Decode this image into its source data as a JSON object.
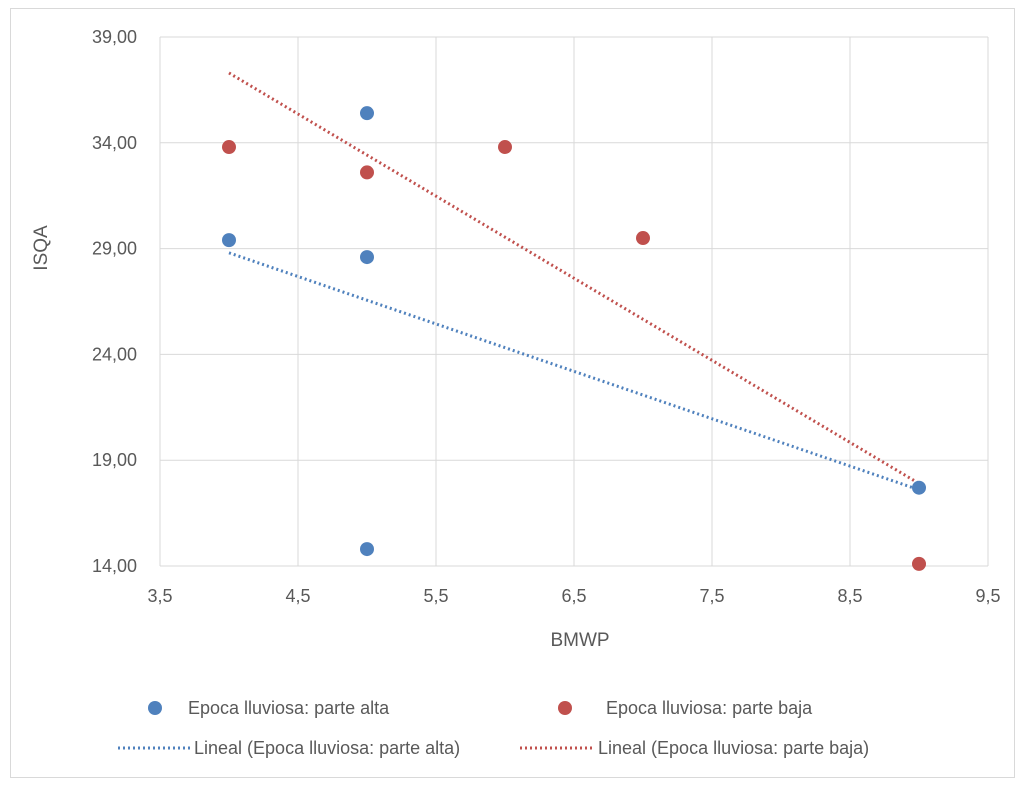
{
  "chart_data": {
    "type": "scatter",
    "title": "",
    "xlabel": "BMWP",
    "ylabel": "ISQA",
    "xlim": [
      3.5,
      9.5
    ],
    "ylim": [
      14.0,
      39.0
    ],
    "x_ticks": [
      "3,5",
      "4,5",
      "5,5",
      "6,5",
      "7,5",
      "8,5",
      "9,5"
    ],
    "y_ticks": [
      "14,00",
      "19,00",
      "24,00",
      "29,00",
      "34,00",
      "39,00"
    ],
    "grid": true,
    "legend_position": "bottom",
    "series": [
      {
        "name": "Epoca lluviosa: parte alta",
        "color": "#4f81bd",
        "points": [
          [
            4,
            29.4
          ],
          [
            5,
            35.4
          ],
          [
            5,
            28.6
          ],
          [
            5,
            14.8
          ],
          [
            9,
            17.7
          ]
        ]
      },
      {
        "name": "Epoca lluviosa: parte baja",
        "color": "#c0504d",
        "points": [
          [
            4,
            33.8
          ],
          [
            5,
            32.6
          ],
          [
            6,
            33.8
          ],
          [
            7,
            29.5
          ],
          [
            9,
            14.1
          ]
        ]
      }
    ],
    "trendlines": [
      {
        "name": "Lineal (Epoca lluviosa: parte alta)",
        "color": "#4f81bd",
        "from": [
          4,
          28.8
        ],
        "to": [
          9,
          17.6
        ]
      },
      {
        "name": "Lineal (Epoca lluviosa: parte baja)",
        "color": "#c0504d",
        "from": [
          4,
          37.3
        ],
        "to": [
          9,
          17.9
        ]
      }
    ]
  }
}
